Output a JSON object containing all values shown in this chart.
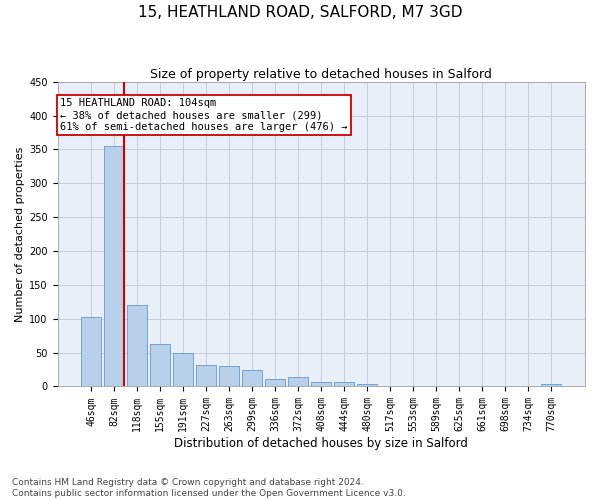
{
  "title": "15, HEATHLAND ROAD, SALFORD, M7 3GD",
  "subtitle": "Size of property relative to detached houses in Salford",
  "xlabel": "Distribution of detached houses by size in Salford",
  "ylabel": "Number of detached properties",
  "bar_labels": [
    "46sqm",
    "82sqm",
    "118sqm",
    "155sqm",
    "191sqm",
    "227sqm",
    "263sqm",
    "299sqm",
    "336sqm",
    "372sqm",
    "408sqm",
    "444sqm",
    "480sqm",
    "517sqm",
    "553sqm",
    "589sqm",
    "625sqm",
    "661sqm",
    "698sqm",
    "734sqm",
    "770sqm"
  ],
  "bar_values": [
    103,
    355,
    120,
    62,
    50,
    31,
    30,
    25,
    11,
    14,
    6,
    7,
    3,
    1,
    1,
    1,
    0,
    1,
    0,
    1,
    3
  ],
  "bar_color": "#b8d0ea",
  "bar_edge_color": "#6699cc",
  "background_color": "#e8eff8",
  "grid_color": "#c0c8d8",
  "vline_color": "#cc0000",
  "vline_x_index": 1,
  "annotation_text": "15 HEATHLAND ROAD: 104sqm\n← 38% of detached houses are smaller (299)\n61% of semi-detached houses are larger (476) →",
  "annotation_box_color": "#ffffff",
  "annotation_box_edge": "#cc0000",
  "ylim": [
    0,
    450
  ],
  "yticks": [
    0,
    50,
    100,
    150,
    200,
    250,
    300,
    350,
    400,
    450
  ],
  "footer": "Contains HM Land Registry data © Crown copyright and database right 2024.\nContains public sector information licensed under the Open Government Licence v3.0.",
  "title_fontsize": 11,
  "subtitle_fontsize": 9,
  "xlabel_fontsize": 8.5,
  "ylabel_fontsize": 8,
  "tick_fontsize": 7,
  "annotation_fontsize": 7.5,
  "footer_fontsize": 6.5
}
